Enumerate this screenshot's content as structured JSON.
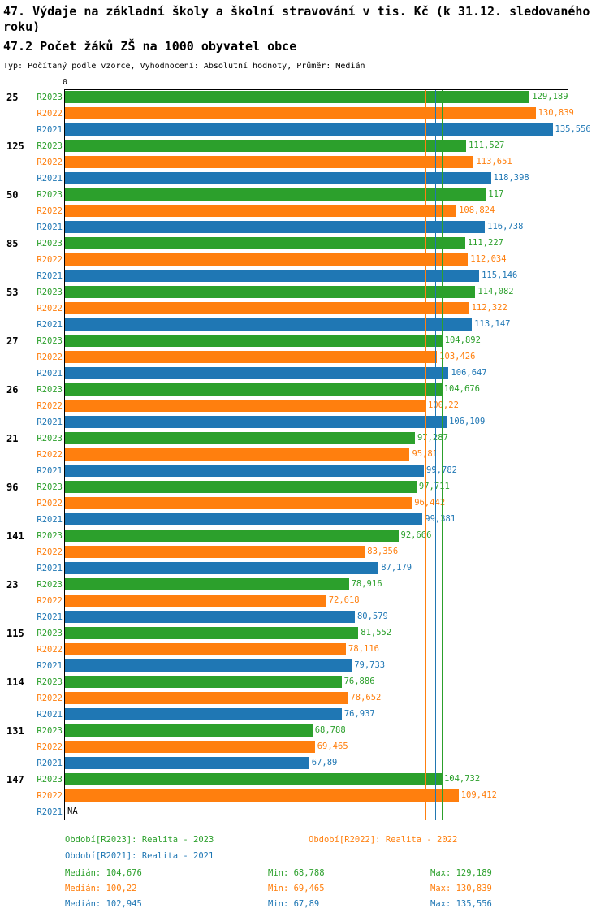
{
  "header": {
    "title_line1": "47. Výdaje na základní školy a školní stravování v tis. Kč (k 31.12. sledovaného roku)",
    "title_line2": "47.2 Počet žáků ZŠ na 1000 obyvatel obce",
    "subtitle": "Typ: Počítaný podle vzorce, Vyhodnocení: Absolutní hodnoty, Průměr: Medián"
  },
  "axis": {
    "zero_label": "0"
  },
  "chart_data": {
    "type": "bar",
    "orientation": "horizontal",
    "x_origin": 0,
    "unit": "tis. Kč",
    "categories": [
      "25",
      "125",
      "50",
      "85",
      "53",
      "27",
      "26",
      "21",
      "96",
      "141",
      "23",
      "115",
      "114",
      "131",
      "147"
    ],
    "series": [
      {
        "name": "R2023",
        "color": "#2ca02c",
        "values": [
          129.189,
          111.527,
          117,
          111.227,
          114.082,
          104.892,
          104.676,
          97.287,
          97.711,
          92.666,
          78.916,
          81.552,
          76.886,
          68.788,
          104.732
        ],
        "labels": [
          "129,189",
          "111,527",
          "117",
          "111,227",
          "114,082",
          "104,892",
          "104,676",
          "97,287",
          "97,711",
          "92,666",
          "78,916",
          "81,552",
          "76,886",
          "68,788",
          "104,732"
        ],
        "median": 104.676
      },
      {
        "name": "R2022",
        "color": "#ff7f0e",
        "values": [
          130.839,
          113.651,
          108.824,
          112.034,
          112.322,
          103.426,
          100.22,
          95.81,
          96.442,
          83.356,
          72.618,
          78.116,
          78.652,
          69.465,
          109.412
        ],
        "labels": [
          "130,839",
          "113,651",
          "108,824",
          "112,034",
          "112,322",
          "103,426",
          "100,22",
          "95,81",
          "96,442",
          "83,356",
          "72,618",
          "78,116",
          "78,652",
          "69,465",
          "109,412"
        ],
        "median": 100.22
      },
      {
        "name": "R2021",
        "color": "#1f77b4",
        "values": [
          135.556,
          118.398,
          116.738,
          115.146,
          113.147,
          106.647,
          106.109,
          99.782,
          99.381,
          87.179,
          80.579,
          79.733,
          76.937,
          67.89,
          null
        ],
        "labels": [
          "135,556",
          "118,398",
          "116,738",
          "115,146",
          "113,147",
          "106,647",
          "106,109",
          "99,782",
          "99,381",
          "87,179",
          "80,579",
          "79,733",
          "76,937",
          "67,89",
          "NA"
        ],
        "median": 102.945
      }
    ]
  },
  "legend": {
    "items": [
      {
        "label": "Období[R2023]: Realita - 2023",
        "color": "#2ca02c"
      },
      {
        "label": "Období[R2022]: Realita - 2022",
        "color": "#ff7f0e"
      },
      {
        "label": "Období[R2021]: Realita - 2021",
        "color": "#1f77b4"
      }
    ]
  },
  "stats": {
    "rows": [
      {
        "color": "#2ca02c",
        "median": "Medián: 104,676",
        "min": "Min: 68,788",
        "max": "Max: 129,189"
      },
      {
        "color": "#ff7f0e",
        "median": "Medián: 100,22",
        "min": "Min: 69,465",
        "max": "Max: 130,839"
      },
      {
        "color": "#1f77b4",
        "median": "Medián: 102,945",
        "min": "Min: 67,89",
        "max": "Max: 135,556"
      }
    ]
  }
}
